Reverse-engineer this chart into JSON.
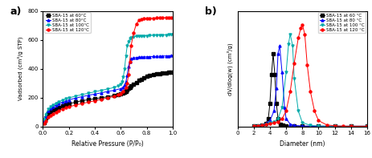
{
  "title_a": "a)",
  "title_b": "b)",
  "xlabel_a": "Relative Pressure (P/P₀)",
  "ylabel_a": "Vadsorbed (cm³/g STP)",
  "xlabel_b": "Diameter (nm)",
  "ylabel_b": "dV/dlog(w) (cm³/g)",
  "legend_labels_a": [
    "SBA-15 at 60°C",
    "SBA-15 at 80°C",
    "SBA-15 at 100°C",
    "SBA-15 at 120°C"
  ],
  "legend_labels_b": [
    "SBA-15 at 60 °C",
    "SBA-15 at 80 °C",
    "SBA-15 at 100 °C",
    "SBA-15 at 120 °C"
  ],
  "colors": [
    "black",
    "blue",
    "#00AAAA",
    "red"
  ],
  "markers_a": [
    "s",
    "^",
    "v",
    "o"
  ],
  "markers_b": [
    "s",
    "^",
    "v",
    "o"
  ],
  "ylim_a": [
    0,
    800
  ],
  "xlim_a": [
    0.0,
    1.0
  ],
  "ylim_b": [
    0,
    0.6
  ],
  "xlim_b": [
    0,
    16
  ],
  "a_60_x": [
    0.01,
    0.02,
    0.04,
    0.06,
    0.08,
    0.1,
    0.12,
    0.15,
    0.18,
    0.2,
    0.25,
    0.3,
    0.35,
    0.4,
    0.45,
    0.5,
    0.55,
    0.58,
    0.6,
    0.62,
    0.63,
    0.64,
    0.65,
    0.66,
    0.67,
    0.68,
    0.7,
    0.72,
    0.74,
    0.76,
    0.78,
    0.8,
    0.82,
    0.85,
    0.88,
    0.9,
    0.92,
    0.95,
    0.97,
    0.99
  ],
  "a_60_y": [
    28,
    58,
    88,
    102,
    112,
    122,
    130,
    142,
    152,
    157,
    168,
    178,
    185,
    192,
    199,
    206,
    214,
    220,
    226,
    232,
    238,
    245,
    255,
    265,
    273,
    280,
    295,
    305,
    318,
    328,
    338,
    348,
    355,
    360,
    363,
    366,
    368,
    372,
    375,
    378
  ],
  "a_80_x": [
    0.01,
    0.02,
    0.04,
    0.06,
    0.08,
    0.1,
    0.12,
    0.15,
    0.18,
    0.2,
    0.25,
    0.3,
    0.35,
    0.4,
    0.45,
    0.5,
    0.55,
    0.6,
    0.62,
    0.63,
    0.64,
    0.65,
    0.66,
    0.67,
    0.68,
    0.7,
    0.72,
    0.74,
    0.76,
    0.78,
    0.8,
    0.82,
    0.85,
    0.88,
    0.9,
    0.92,
    0.95,
    0.97,
    0.99
  ],
  "a_80_y": [
    38,
    72,
    108,
    126,
    138,
    148,
    158,
    168,
    178,
    184,
    196,
    206,
    216,
    224,
    233,
    242,
    251,
    262,
    272,
    285,
    310,
    355,
    415,
    450,
    468,
    475,
    478,
    480,
    481,
    482,
    483,
    484,
    485,
    486,
    487,
    488,
    489,
    490,
    491
  ],
  "a_100_x": [
    0.01,
    0.02,
    0.04,
    0.06,
    0.08,
    0.1,
    0.12,
    0.15,
    0.18,
    0.2,
    0.25,
    0.3,
    0.35,
    0.4,
    0.45,
    0.5,
    0.55,
    0.58,
    0.6,
    0.61,
    0.62,
    0.63,
    0.64,
    0.65,
    0.66,
    0.67,
    0.68,
    0.7,
    0.72,
    0.74,
    0.76,
    0.78,
    0.8,
    0.82,
    0.85,
    0.88,
    0.9,
    0.92,
    0.95,
    0.97,
    0.99
  ],
  "a_100_y": [
    48,
    82,
    118,
    138,
    150,
    160,
    170,
    181,
    192,
    197,
    210,
    220,
    230,
    240,
    250,
    260,
    270,
    280,
    292,
    310,
    345,
    400,
    490,
    560,
    590,
    608,
    618,
    622,
    624,
    626,
    627,
    628,
    629,
    630,
    631,
    632,
    633,
    634,
    634,
    635,
    635
  ],
  "a_120_x": [
    0.01,
    0.02,
    0.04,
    0.06,
    0.08,
    0.1,
    0.12,
    0.15,
    0.18,
    0.2,
    0.25,
    0.3,
    0.35,
    0.4,
    0.45,
    0.5,
    0.55,
    0.58,
    0.6,
    0.62,
    0.64,
    0.65,
    0.66,
    0.67,
    0.68,
    0.7,
    0.72,
    0.74,
    0.76,
    0.78,
    0.8,
    0.82,
    0.85,
    0.88,
    0.9,
    0.92,
    0.95,
    0.97,
    0.99
  ],
  "a_120_y": [
    18,
    38,
    62,
    76,
    88,
    98,
    108,
    120,
    130,
    135,
    148,
    158,
    168,
    178,
    188,
    198,
    208,
    218,
    228,
    242,
    268,
    300,
    360,
    450,
    560,
    650,
    710,
    735,
    742,
    746,
    748,
    750,
    751,
    752,
    753,
    754,
    755,
    756,
    757
  ],
  "b_60_x": [
    2.0,
    2.5,
    3.0,
    3.5,
    3.8,
    4.0,
    4.2,
    4.4,
    4.6,
    4.8,
    5.0,
    5.3,
    5.6,
    6.0,
    7.0,
    8.0,
    10.0,
    12.0,
    14.0,
    16.0
  ],
  "b_60_y": [
    0.002,
    0.004,
    0.008,
    0.015,
    0.04,
    0.12,
    0.27,
    0.38,
    0.27,
    0.12,
    0.04,
    0.012,
    0.005,
    0.003,
    0.002,
    0.001,
    0.001,
    0.001,
    0.001,
    0.001
  ],
  "b_80_x": [
    2.0,
    2.5,
    3.0,
    3.5,
    4.0,
    4.5,
    4.8,
    5.0,
    5.2,
    5.5,
    5.8,
    6.0,
    6.5,
    7.0,
    8.0,
    10.0,
    12.0,
    14.0,
    16.0
  ],
  "b_80_y": [
    0.002,
    0.004,
    0.008,
    0.015,
    0.03,
    0.08,
    0.2,
    0.38,
    0.42,
    0.28,
    0.1,
    0.04,
    0.012,
    0.005,
    0.002,
    0.001,
    0.001,
    0.001,
    0.001
  ],
  "b_100_x": [
    2.0,
    2.5,
    3.0,
    3.5,
    4.0,
    4.5,
    5.0,
    5.5,
    6.0,
    6.3,
    6.5,
    6.8,
    7.0,
    7.5,
    8.0,
    9.0,
    10.0,
    12.0,
    14.0,
    16.0
  ],
  "b_100_y": [
    0.002,
    0.004,
    0.008,
    0.012,
    0.018,
    0.025,
    0.04,
    0.1,
    0.28,
    0.43,
    0.48,
    0.42,
    0.25,
    0.08,
    0.02,
    0.005,
    0.002,
    0.001,
    0.001,
    0.001
  ],
  "b_120_x": [
    2.0,
    2.5,
    3.0,
    3.5,
    4.0,
    4.5,
    5.0,
    5.5,
    6.0,
    6.5,
    7.0,
    7.5,
    7.8,
    8.0,
    8.3,
    8.6,
    9.0,
    9.5,
    10.0,
    11.0,
    12.0,
    13.0,
    14.0,
    16.0
  ],
  "b_120_y": [
    0.002,
    0.004,
    0.006,
    0.01,
    0.014,
    0.018,
    0.025,
    0.04,
    0.08,
    0.18,
    0.33,
    0.46,
    0.51,
    0.53,
    0.48,
    0.32,
    0.18,
    0.08,
    0.03,
    0.008,
    0.003,
    0.001,
    0.001,
    0.001
  ]
}
